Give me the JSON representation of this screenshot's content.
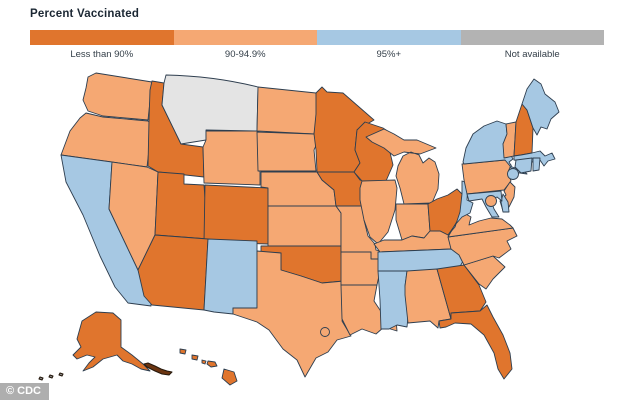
{
  "title": "Percent Vaccinated",
  "watermark": "© CDC",
  "colors": {
    "lt90": "#E0752D",
    "c90_94": "#F5A873",
    "c95plus": "#A6C8E3",
    "na_map": "#E4E4E4",
    "na_legend": "#B3B3B3",
    "border": "#2E3E4F"
  },
  "legend": {
    "items": [
      {
        "label": "Less than 90%",
        "colorKey": "lt90"
      },
      {
        "label": "90-94.9%",
        "colorKey": "c90_94"
      },
      {
        "label": "95%+",
        "colorKey": "c95plus"
      },
      {
        "label": "Not available",
        "colorKey": "na_legend"
      }
    ]
  },
  "map": {
    "categories": {
      "lt90": [
        "ID",
        "UT",
        "CO",
        "AZ",
        "MN",
        "WI",
        "IA",
        "OH",
        "OK",
        "GA",
        "FL",
        "NH",
        "AK",
        "HI"
      ],
      "c90_94": [
        "WA",
        "OR",
        "NV",
        "WY",
        "ND",
        "SD",
        "NE",
        "KS",
        "MO",
        "AR",
        "LA",
        "TX",
        "IL",
        "IN",
        "MI",
        "KY",
        "AL",
        "VA",
        "NC",
        "SC",
        "PA",
        "VT",
        "NJ"
      ],
      "c95plus": [
        "CA",
        "NM",
        "TN",
        "MS",
        "WV",
        "MD",
        "DE",
        "NY",
        "CT",
        "RI",
        "MA",
        "ME"
      ],
      "na": [
        "MT"
      ]
    },
    "callouts": [
      {
        "id": "nyc",
        "category": "c95plus"
      },
      {
        "id": "dc",
        "category": "c90_94"
      },
      {
        "id": "houston",
        "category": "c90_94"
      }
    ]
  }
}
